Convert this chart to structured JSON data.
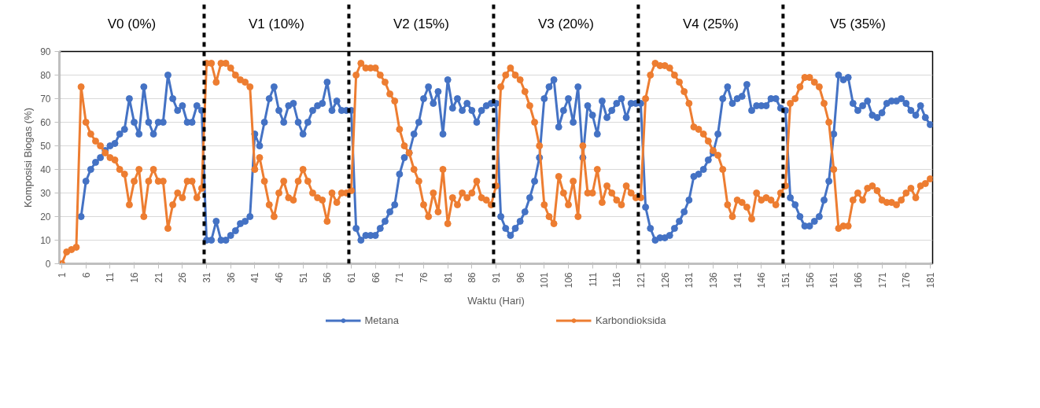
{
  "chart_data": {
    "type": "line",
    "xlabel": "Waktu (Hari)",
    "ylabel": "Komposisi Biogas (%)",
    "x": [
      1,
      2,
      3,
      4,
      5,
      6,
      7,
      8,
      9,
      10,
      11,
      12,
      13,
      14,
      15,
      16,
      17,
      18,
      19,
      20,
      21,
      22,
      23,
      24,
      25,
      26,
      27,
      28,
      29,
      30,
      31,
      32,
      33,
      34,
      35,
      36,
      37,
      38,
      39,
      40,
      41,
      42,
      43,
      44,
      45,
      46,
      47,
      48,
      49,
      50,
      51,
      52,
      53,
      54,
      55,
      56,
      57,
      58,
      59,
      60,
      61,
      62,
      63,
      64,
      65,
      66,
      67,
      68,
      69,
      70,
      71,
      72,
      73,
      74,
      75,
      76,
      77,
      78,
      79,
      80,
      81,
      82,
      83,
      84,
      85,
      86,
      87,
      88,
      89,
      90,
      91,
      92,
      93,
      94,
      95,
      96,
      97,
      98,
      99,
      100,
      101,
      102,
      103,
      104,
      105,
      106,
      107,
      108,
      109,
      110,
      111,
      112,
      113,
      114,
      115,
      116,
      117,
      118,
      119,
      120,
      121,
      122,
      123,
      124,
      125,
      126,
      127,
      128,
      129,
      130,
      131,
      132,
      133,
      134,
      135,
      136,
      137,
      138,
      139,
      140,
      141,
      142,
      143,
      144,
      145,
      146,
      147,
      148,
      149,
      150,
      151,
      152,
      153,
      154,
      155,
      156,
      157,
      158,
      159,
      160,
      161,
      162,
      163,
      164,
      165,
      166,
      167,
      168,
      169,
      170,
      171,
      172,
      173,
      174,
      175,
      176,
      177,
      178,
      179,
      180,
      181
    ],
    "series": [
      {
        "name": "Metana",
        "color": "#4472c4",
        "values": [
          null,
          null,
          null,
          null,
          20,
          35,
          40,
          43,
          45,
          48,
          50,
          51,
          55,
          57,
          70,
          60,
          55,
          75,
          60,
          55,
          60,
          60,
          80,
          70,
          65,
          67,
          60,
          60,
          67,
          65,
          10,
          10,
          18,
          10,
          10,
          12,
          14,
          17,
          18,
          20,
          55,
          50,
          60,
          70,
          75,
          65,
          60,
          67,
          68,
          60,
          55,
          60,
          65,
          67,
          68,
          77,
          65,
          69,
          65,
          65,
          65,
          15,
          10,
          12,
          12,
          12,
          15,
          18,
          22,
          25,
          38,
          45,
          47,
          55,
          60,
          70,
          75,
          68,
          73,
          55,
          78,
          66,
          70,
          65,
          68,
          65,
          60,
          65,
          67,
          68,
          68,
          20,
          15,
          12,
          15,
          18,
          22,
          28,
          35,
          45,
          70,
          75,
          78,
          58,
          65,
          70,
          60,
          75,
          45,
          67,
          63,
          55,
          69,
          62,
          65,
          68,
          70,
          62,
          68,
          68,
          68,
          24,
          15,
          10,
          11,
          11,
          12,
          15,
          18,
          22,
          27,
          37,
          38,
          40,
          44,
          47,
          55,
          70,
          75,
          68,
          70,
          71,
          76,
          65,
          67,
          67,
          67,
          70,
          70,
          66,
          65,
          28,
          25,
          20,
          16,
          16,
          18,
          20,
          27,
          35,
          55,
          80,
          78,
          79,
          68,
          65,
          67,
          69,
          63,
          62,
          64,
          68,
          69,
          69,
          70,
          68,
          65,
          63,
          67,
          62,
          59
        ]
      },
      {
        "name": "Karbondioksida",
        "color": "#ed7d31",
        "values": [
          0,
          5,
          6,
          7,
          75,
          60,
          55,
          52,
          50,
          47,
          45,
          44,
          40,
          38,
          25,
          35,
          40,
          20,
          35,
          40,
          35,
          35,
          15,
          25,
          30,
          28,
          35,
          35,
          28,
          32,
          85,
          85,
          77,
          85,
          85,
          83,
          80,
          78,
          77,
          75,
          40,
          45,
          35,
          25,
          20,
          30,
          35,
          28,
          27,
          35,
          40,
          35,
          30,
          28,
          27,
          18,
          30,
          26,
          30,
          30,
          31,
          80,
          85,
          83,
          83,
          83,
          80,
          77,
          72,
          69,
          57,
          50,
          47,
          40,
          35,
          25,
          20,
          30,
          22,
          40,
          17,
          28,
          25,
          30,
          28,
          30,
          35,
          28,
          27,
          25,
          33,
          75,
          80,
          83,
          80,
          78,
          73,
          67,
          60,
          50,
          25,
          20,
          17,
          37,
          30,
          25,
          35,
          20,
          50,
          30,
          30,
          40,
          26,
          33,
          30,
          27,
          25,
          33,
          30,
          28,
          28,
          70,
          80,
          85,
          84,
          84,
          83,
          80,
          77,
          73,
          68,
          58,
          57,
          55,
          52,
          48,
          46,
          40,
          25,
          20,
          27,
          26,
          24,
          19,
          30,
          27,
          28,
          27,
          25,
          30,
          33,
          68,
          70,
          75,
          79,
          79,
          77,
          75,
          68,
          60,
          40,
          15,
          16,
          16,
          27,
          30,
          27,
          32,
          33,
          31,
          27,
          26,
          26,
          25,
          27,
          30,
          32,
          28,
          33,
          34,
          36
        ]
      }
    ],
    "xlim": [
      0.5,
      181.5
    ],
    "xticks": [
      1,
      6,
      11,
      16,
      21,
      26,
      31,
      36,
      41,
      46,
      51,
      56,
      61,
      66,
      71,
      76,
      81,
      86,
      91,
      96,
      101,
      106,
      111,
      116,
      121,
      126,
      131,
      136,
      141,
      146,
      151,
      156,
      161,
      166,
      171,
      176,
      181
    ],
    "ylim": [
      0,
      90
    ],
    "yticks": [
      0,
      10,
      20,
      30,
      40,
      50,
      60,
      70,
      80,
      90
    ],
    "ref_lines": [
      {
        "axis": "x",
        "value": 30.5,
        "color": "#000000",
        "line_style": "dashed"
      },
      {
        "axis": "x",
        "value": 60.5,
        "color": "#000000",
        "line_style": "dashed"
      },
      {
        "axis": "x",
        "value": 90.5,
        "color": "#000000",
        "line_style": "dashed"
      },
      {
        "axis": "x",
        "value": 120.5,
        "color": "#000000",
        "line_style": "dashed"
      },
      {
        "axis": "x",
        "value": 150.5,
        "color": "#000000",
        "line_style": "dashed"
      }
    ],
    "annotations": [
      "V0 (0%)",
      "V1 (10%)",
      "V2 (15%)",
      "V3 (20%)",
      "V4 (25%)",
      "V5 (35%)"
    ],
    "grid": "y",
    "legend": "bottom",
    "marker": "circle",
    "line_style": "solid"
  }
}
